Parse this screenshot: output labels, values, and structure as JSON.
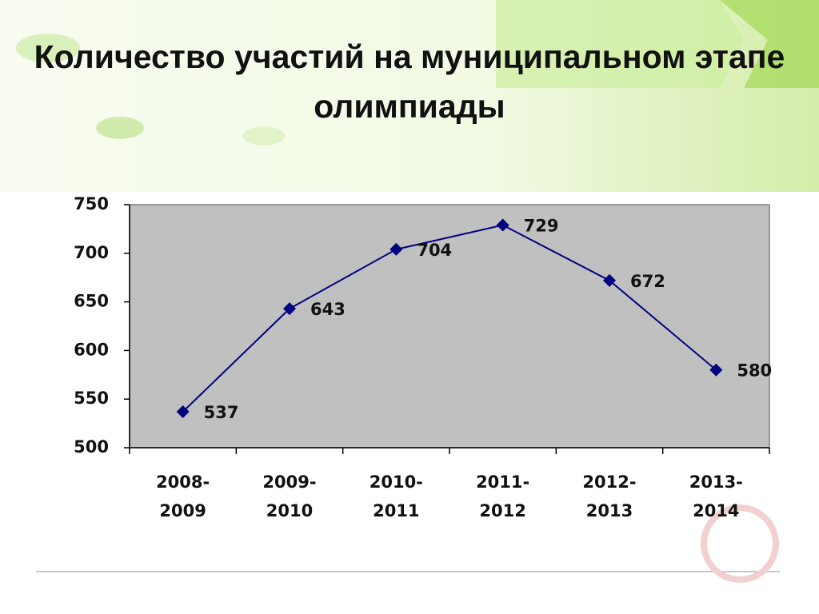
{
  "chart_data": {
    "type": "line",
    "title": "Количество участий на муниципальном этапе олимпиады",
    "categories": [
      "2008-2009",
      "2009-2010",
      "2010-2011",
      "2011-2012",
      "2012-2013",
      "2013-2014"
    ],
    "values": [
      537,
      643,
      704,
      729,
      672,
      580
    ],
    "color": "#000080",
    "ylim": [
      500,
      750
    ],
    "yticks": [
      500,
      550,
      600,
      650,
      700,
      750
    ],
    "grid": false
  }
}
